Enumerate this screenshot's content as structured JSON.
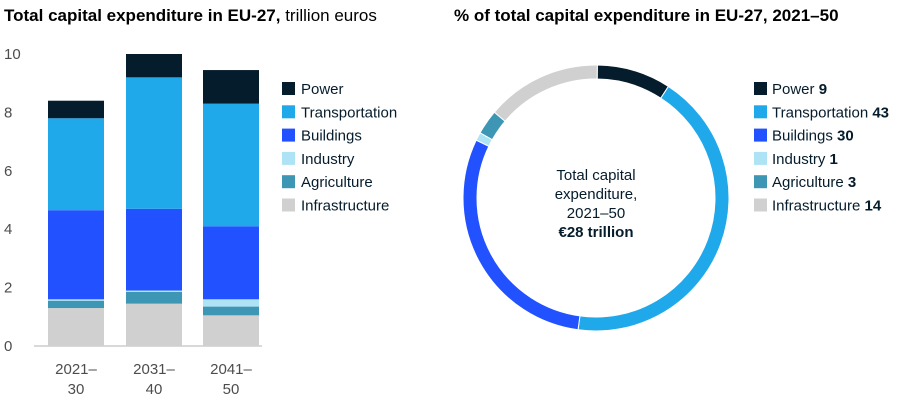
{
  "left_title": {
    "bold": "Total capital expenditure in EU-27,",
    "normal": "trillion euros"
  },
  "right_title": "% of total capital expenditure in EU-27, 2021–50",
  "colors": {
    "Power": "#051c2c",
    "Transportation": "#1fa8ea",
    "Buildings": "#2251ff",
    "Industry": "#aee3f5",
    "Agriculture": "#3c96b4",
    "Infrastructure": "#d0d0d0"
  },
  "chart_data": [
    {
      "type": "bar",
      "stacked": true,
      "title": "Total capital expenditure in EU-27, trillion euros",
      "categories": [
        "2021–30",
        "2031–40",
        "2041–50"
      ],
      "category_lines": [
        [
          "2021–",
          "30"
        ],
        [
          "2031–",
          "40"
        ],
        [
          "2041–",
          "50"
        ]
      ],
      "ylim": [
        0,
        10
      ],
      "yticks": [
        "0",
        "2",
        "4",
        "6",
        "8",
        "10"
      ],
      "series": [
        {
          "name": "Infrastructure",
          "values": [
            1.3,
            1.45,
            1.05
          ]
        },
        {
          "name": "Agriculture",
          "values": [
            0.25,
            0.4,
            0.3
          ]
        },
        {
          "name": "Industry",
          "values": [
            0.05,
            0.05,
            0.25
          ]
        },
        {
          "name": "Buildings",
          "values": [
            3.05,
            2.8,
            2.5
          ]
        },
        {
          "name": "Transportation",
          "values": [
            3.15,
            4.5,
            4.2
          ]
        },
        {
          "name": "Power",
          "values": [
            0.6,
            0.8,
            1.15
          ]
        }
      ],
      "legend": [
        "Power",
        "Transportation",
        "Buildings",
        "Industry",
        "Agriculture",
        "Infrastructure"
      ],
      "legend_placement": "right",
      "grid": false
    },
    {
      "type": "pie",
      "donut": true,
      "title": "% of total capital expenditure in EU-27, 2021–50",
      "slices": [
        {
          "name": "Power",
          "value": 9
        },
        {
          "name": "Transportation",
          "value": 43
        },
        {
          "name": "Buildings",
          "value": 30
        },
        {
          "name": "Industry",
          "value": 1
        },
        {
          "name": "Agriculture",
          "value": 3
        },
        {
          "name": "Infrastructure",
          "value": 14
        }
      ],
      "center_label": [
        "Total capital",
        "expenditure,",
        "2021–50"
      ],
      "center_value": "€28 trillion",
      "legend_placement": "right"
    }
  ]
}
